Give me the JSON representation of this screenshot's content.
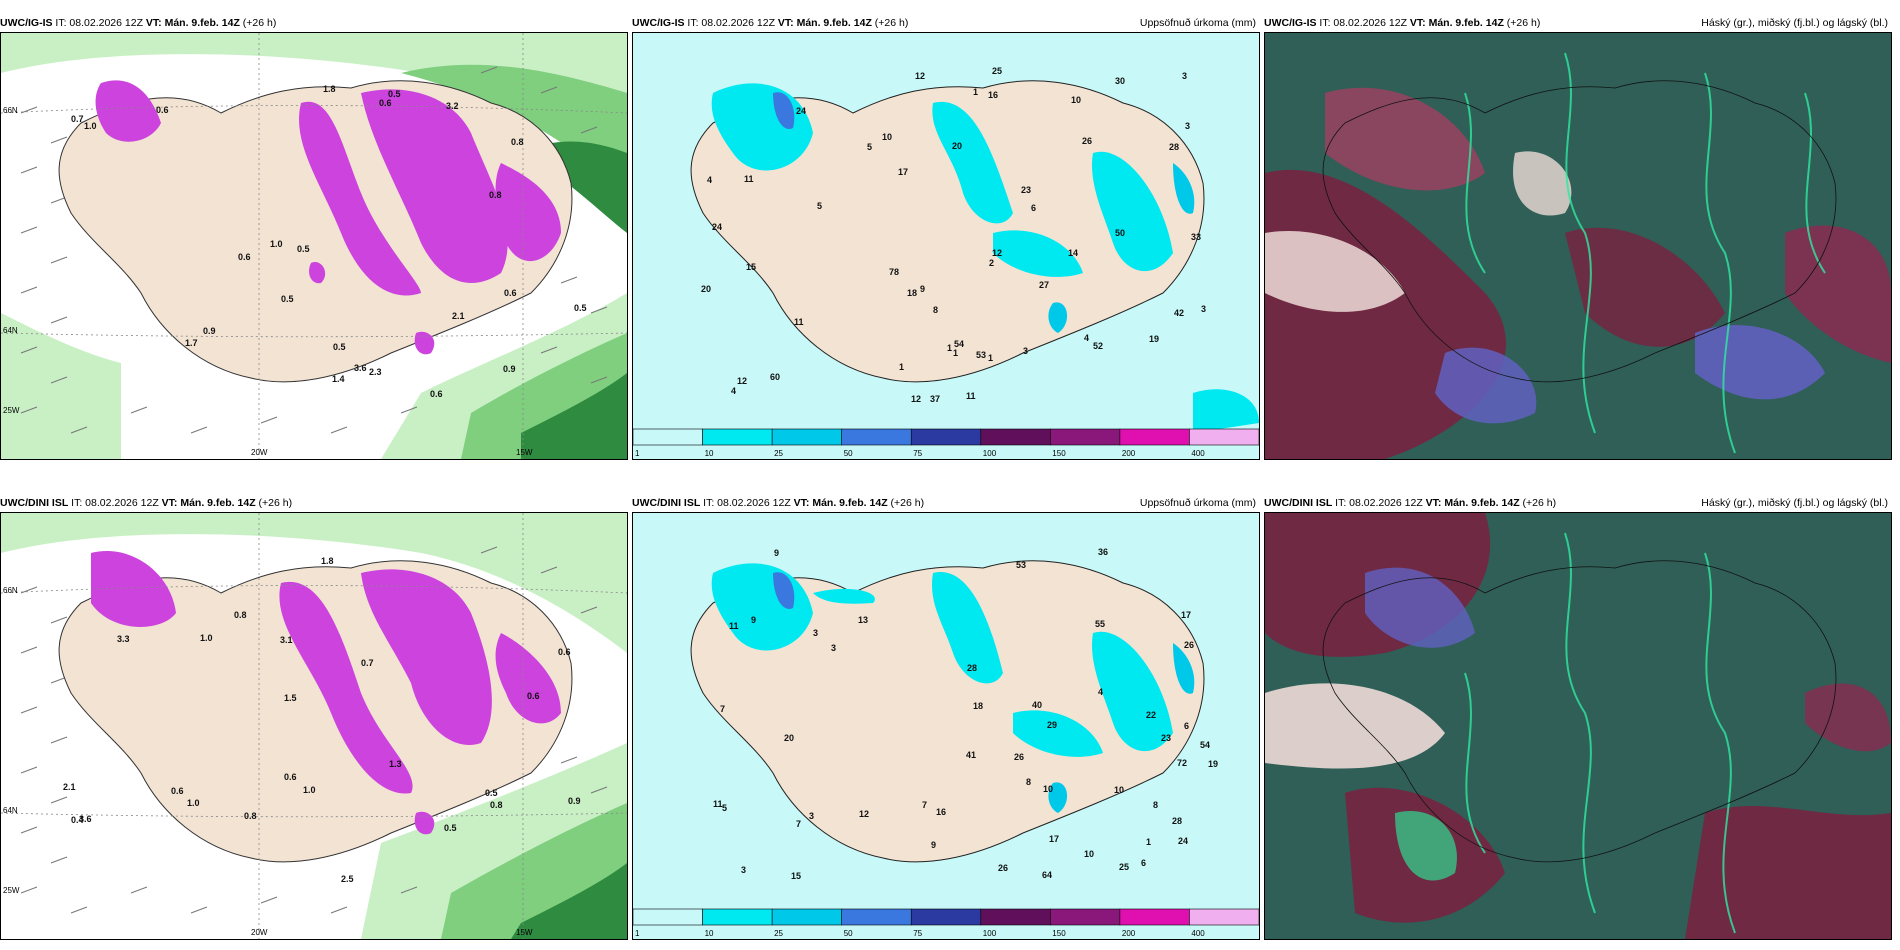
{
  "rows": [
    {
      "panels": [
        {
          "model": "UWC/IG-IS",
          "it": "IT: 08.02.2026 12Z",
          "vt_label": "VT:",
          "vt": "Mán. 9.feb. 14Z",
          "lead": "(+26 h)",
          "right_title": "",
          "axis_labels": {
            "lat_top": "66N",
            "lat_bottom": "64N",
            "lon_left": "20W",
            "lon_right": "15W",
            "lon_corner": "25W"
          },
          "values": [
            "0.6",
            "3.2",
            "3.6",
            "0.5",
            "0.9",
            "0.8",
            "2.1",
            "1.8",
            "0.5",
            "1.4",
            "0.7",
            "2.3",
            "0.6",
            "1.0",
            "0.9",
            "0.6",
            "0.5",
            "1.7",
            "0.5",
            "0.6",
            "0.8",
            "0.6",
            "1.0",
            "0.5"
          ]
        },
        {
          "model": "UWC/IG-IS",
          "it": "IT: 08.02.2026 12Z",
          "vt_label": "VT:",
          "vt": "Mán. 9.feb. 14Z",
          "lead": "(+26 h)",
          "right_title": "Uppsöfnuð úrkoma (mm)",
          "values": [
            "4",
            "4",
            "10",
            "5",
            "3",
            "1",
            "2",
            "1",
            "12",
            "16",
            "78",
            "28",
            "50",
            "24",
            "26",
            "27",
            "33",
            "37",
            "42",
            "54",
            "11",
            "20",
            "15",
            "12",
            "18",
            "19",
            "25",
            "60",
            "53",
            "52",
            "20",
            "23",
            "24",
            "17",
            "11",
            "10",
            "14",
            "30",
            "8",
            "9",
            "12",
            "12",
            "11",
            "1",
            "1",
            "3",
            "5",
            "3",
            "6",
            "4",
            "3",
            "1"
          ],
          "legend": [
            "1",
            "10",
            "25",
            "50",
            "75",
            "100",
            "150",
            "200",
            "400"
          ]
        },
        {
          "model": "UWC/IG-IS",
          "it": "IT: 08.02.2026 12Z",
          "vt_label": "VT:",
          "vt": "Mán. 9.feb. 14Z",
          "lead": "(+26 h)",
          "right_title": "Háský (gr.), miðský (fj.bl.) og lágský (bl.)"
        }
      ]
    },
    {
      "panels": [
        {
          "model": "UWC/DINI ISL",
          "it": "IT: 08.02.2026 12Z",
          "vt_label": "VT:",
          "vt": "Mán. 9.feb. 14Z",
          "lead": "(+26 h)",
          "right_title": "",
          "axis_labels": {
            "lat_top": "66N",
            "lat_bottom": "64N",
            "lon_left": "20W",
            "lon_right": "15W",
            "lon_corner": "25W"
          },
          "values": [
            "0.6",
            "0.8",
            "2.5",
            "3.6",
            "3.3",
            "1.0",
            "0.9",
            "1.5",
            "2.1",
            "1.8",
            "0.7",
            "0.5",
            "1.3",
            "0.4",
            "3.1",
            "0.8",
            "1.0",
            "1.0",
            "0.8",
            "0.6",
            "0.5",
            "0.6",
            "0.6"
          ]
        },
        {
          "model": "UWC/DINI ISL",
          "it": "IT: 08.02.2026 12Z",
          "vt_label": "VT:",
          "vt": "Mán. 9.feb. 14Z",
          "lead": "(+26 h)",
          "right_title": "Uppsöfnuð úrkoma (mm)",
          "values": [
            "5",
            "9",
            "9",
            "10",
            "7",
            "15",
            "29",
            "72",
            "64",
            "54",
            "22",
            "28",
            "28",
            "41",
            "12",
            "17",
            "18",
            "16",
            "11",
            "23",
            "17",
            "26",
            "36",
            "53",
            "55",
            "25",
            "13",
            "20",
            "26",
            "19",
            "40",
            "24",
            "26",
            "10",
            "8",
            "3",
            "4",
            "1",
            "6",
            "3",
            "7",
            "6",
            "9",
            "3",
            "3",
            "8",
            "10",
            "11",
            "7"
          ],
          "legend": [
            "1",
            "10",
            "25",
            "50",
            "75",
            "100",
            "150",
            "200",
            "400"
          ]
        },
        {
          "model": "UWC/DINI ISL",
          "it": "IT: 08.02.2026 12Z",
          "vt_label": "VT:",
          "vt": "Mán. 9.feb. 14Z",
          "lead": "(+26 h)",
          "right_title": "Háský (gr.), miðský (fj.bl.) og lágský (bl.)"
        }
      ]
    }
  ],
  "colors": {
    "land": "#f2e3d3",
    "sea_light": "#c9f0c5",
    "sea_mid": "#7fcf7f",
    "sea_dark": "#2e8b3f",
    "snow_violet": "#cc44dd",
    "snow_dark": "#8a2a9a",
    "precip_scale": [
      "#c8f8f8",
      "#00e8f0",
      "#00c8e8",
      "#3a78e0",
      "#2a3aa0",
      "#60105a",
      "#8a187a",
      "#e010b0",
      "#f0b0f0"
    ],
    "cloud_high": "#2f5f57",
    "cloud_mid": "#7a2040",
    "cloud_low": "#6060c0"
  }
}
